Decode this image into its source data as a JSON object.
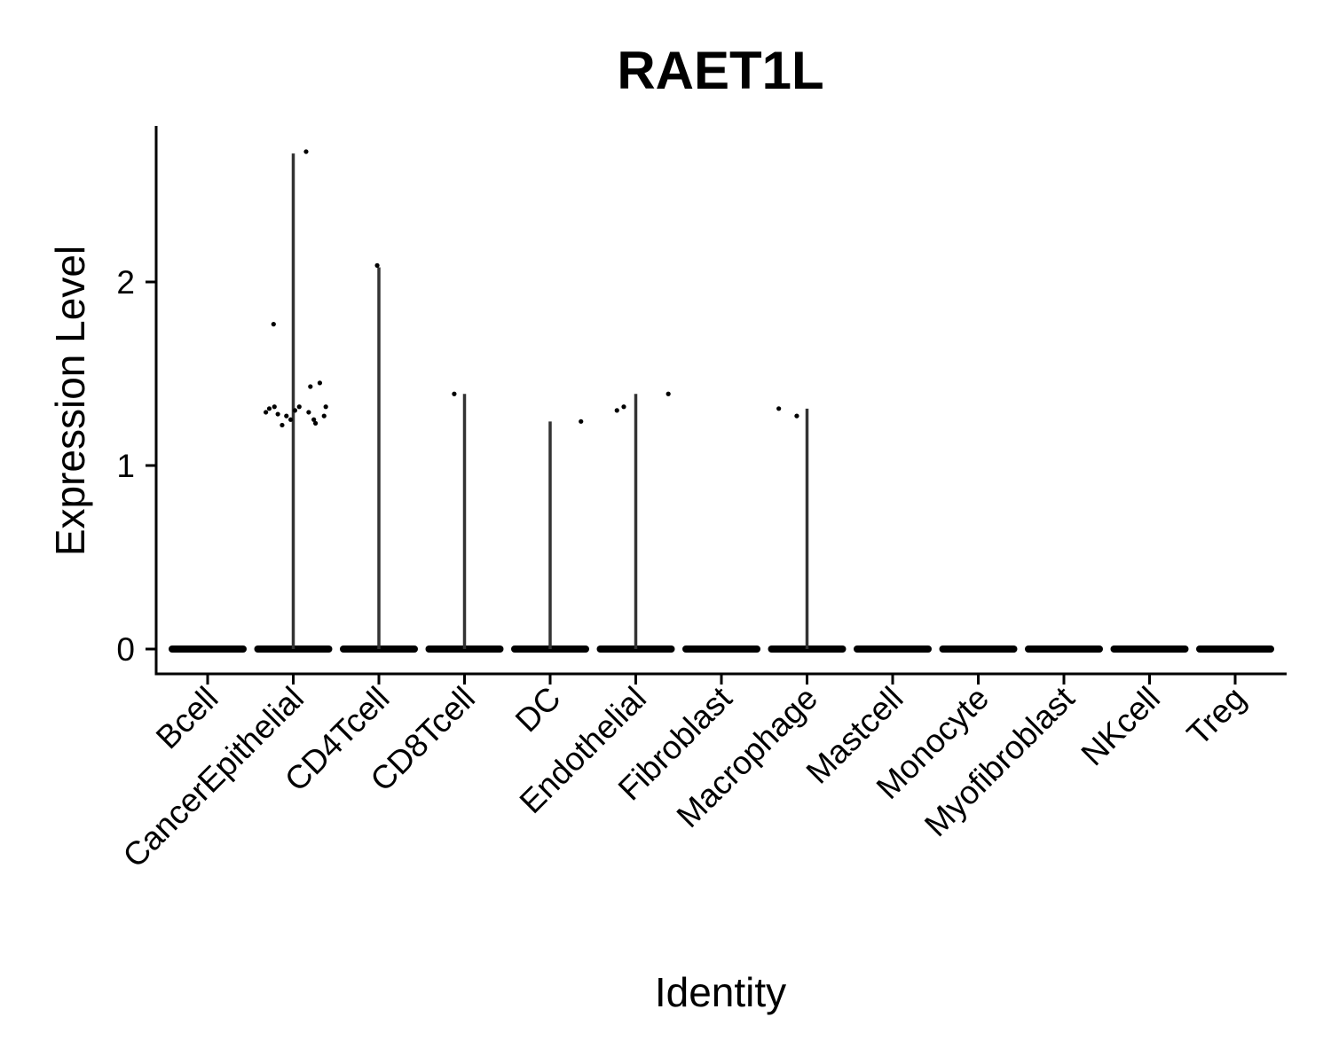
{
  "chart_data": {
    "type": "violin",
    "title": "RAET1L",
    "xlabel": "Identity",
    "ylabel": "Expression Level",
    "ylim": [
      -0.13,
      2.85
    ],
    "yticks": [
      0,
      1,
      2
    ],
    "grid": false,
    "legend": "none",
    "categories": [
      "Bcell",
      "CancerEpithelial",
      "CD4Tcell",
      "CD8Tcell",
      "DC",
      "Endothelial",
      "Fibroblast",
      "Macrophage",
      "Mastcell",
      "Monocyte",
      "Myofibroblast",
      "NKcell",
      "Treg"
    ],
    "violin_max": [
      0,
      2.7,
      2.08,
      1.39,
      1.24,
      1.39,
      0,
      1.31,
      0,
      0,
      0,
      0,
      0
    ],
    "nonzero_points": [
      {
        "category": "CancerEpithelial",
        "jitter": 0.15,
        "y": 2.71
      },
      {
        "category": "CancerEpithelial",
        "jitter": -0.23,
        "y": 1.77
      },
      {
        "category": "CancerEpithelial",
        "jitter": -0.32,
        "y": 1.29
      },
      {
        "category": "CancerEpithelial",
        "jitter": -0.28,
        "y": 1.31
      },
      {
        "category": "CancerEpithelial",
        "jitter": -0.22,
        "y": 1.32
      },
      {
        "category": "CancerEpithelial",
        "jitter": -0.18,
        "y": 1.28
      },
      {
        "category": "CancerEpithelial",
        "jitter": -0.13,
        "y": 1.22
      },
      {
        "category": "CancerEpithelial",
        "jitter": -0.08,
        "y": 1.27
      },
      {
        "category": "CancerEpithelial",
        "jitter": -0.03,
        "y": 1.25
      },
      {
        "category": "CancerEpithelial",
        "jitter": 0.02,
        "y": 1.3
      },
      {
        "category": "CancerEpithelial",
        "jitter": 0.07,
        "y": 1.32
      },
      {
        "category": "CancerEpithelial",
        "jitter": 0.2,
        "y": 1.43
      },
      {
        "category": "CancerEpithelial",
        "jitter": 0.31,
        "y": 1.45
      },
      {
        "category": "CancerEpithelial",
        "jitter": 0.18,
        "y": 1.29
      },
      {
        "category": "CancerEpithelial",
        "jitter": 0.24,
        "y": 1.25
      },
      {
        "category": "CancerEpithelial",
        "jitter": 0.26,
        "y": 1.23
      },
      {
        "category": "CancerEpithelial",
        "jitter": 0.36,
        "y": 1.27
      },
      {
        "category": "CancerEpithelial",
        "jitter": 0.38,
        "y": 1.32
      },
      {
        "category": "CD4Tcell",
        "jitter": -0.02,
        "y": 2.09
      },
      {
        "category": "CD8Tcell",
        "jitter": -0.12,
        "y": 1.39
      },
      {
        "category": "DC",
        "jitter": 0.36,
        "y": 1.24
      },
      {
        "category": "Endothelial",
        "jitter": -0.22,
        "y": 1.3
      },
      {
        "category": "Endothelial",
        "jitter": -0.14,
        "y": 1.32
      },
      {
        "category": "Endothelial",
        "jitter": 0.38,
        "y": 1.39
      },
      {
        "category": "Macrophage",
        "jitter": -0.33,
        "y": 1.31
      },
      {
        "category": "Macrophage",
        "jitter": -0.12,
        "y": 1.27
      }
    ]
  }
}
